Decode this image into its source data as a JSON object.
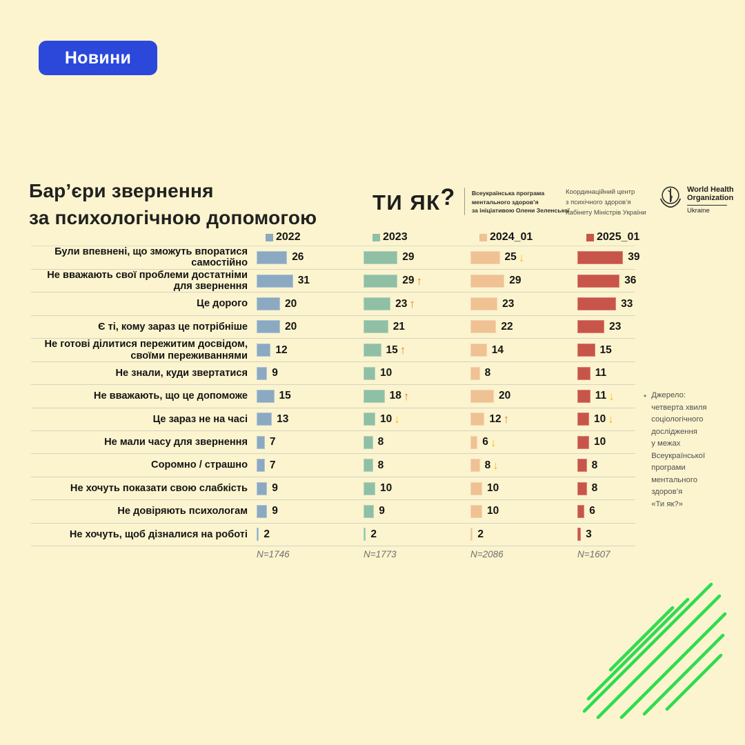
{
  "page": {
    "background": "#FBF4CE",
    "decor_line_color": "#2EDC4F"
  },
  "news_button": {
    "label": "Новини",
    "color": "#2B48DB"
  },
  "title": {
    "line1": "Бар’єри звернення",
    "line2": "за психологічною допомогою"
  },
  "logos": {
    "tyyak": {
      "wordmark": "ТИ ЯК",
      "question": "?",
      "tagline": [
        "Всеукраїнська програма",
        "ментального здоров’я",
        "за ініціативою Олени Зеленської"
      ]
    },
    "coordination": [
      "Координаційний центр",
      "з психічного здоров’я",
      "Кабінету Міністрів України"
    ],
    "who": {
      "name1": "World Health",
      "name2": "Organization",
      "country": "Ukraine"
    }
  },
  "chart_data": {
    "type": "bar",
    "orientation": "horizontal",
    "title": "Бар’єри звернення за психологічною допомогою",
    "value_axis_max": 40,
    "grid": "horizontal row separators only",
    "legend_position": "top",
    "categories": [
      "Були впевнені, що зможуть впоратися самостійно",
      "Не вважають свої проблеми достатніми для звернення",
      "Це дорого",
      "Є ті, кому зараз це потрібніше",
      "Не готові ділитися пережитим досвідом, своїми переживаннями",
      "Не знали, куди звертатися",
      "Не вважають, що це допоможе",
      "Це зараз не на часі",
      "Не мали часу для звернення",
      "Соромно / страшно",
      "Не хочуть показати свою слабкість",
      "Не довіряють психологам",
      "Не хочуть, щоб дізналися на роботі"
    ],
    "series": [
      {
        "name": "2022",
        "color": "#8CA9C2",
        "border": "#AFC6D8",
        "n": "N=1746",
        "values": [
          26,
          31,
          20,
          20,
          12,
          9,
          15,
          13,
          7,
          7,
          9,
          9,
          2
        ],
        "trends": [
          null,
          null,
          null,
          null,
          null,
          null,
          null,
          null,
          null,
          null,
          null,
          null,
          null
        ]
      },
      {
        "name": "2023",
        "color": "#8FC0A5",
        "border": "#AFD4BE",
        "n": "N=1773",
        "values": [
          29,
          29,
          23,
          21,
          15,
          10,
          18,
          10,
          8,
          8,
          10,
          9,
          2
        ],
        "trends": [
          null,
          "up",
          "up",
          null,
          "up",
          null,
          "up",
          "down",
          null,
          null,
          null,
          null,
          null
        ]
      },
      {
        "name": "2024_01",
        "color": "#EFC193",
        "border": "#F4D6B4",
        "n": "N=2086",
        "values": [
          25,
          29,
          23,
          22,
          14,
          8,
          20,
          12,
          6,
          8,
          10,
          10,
          2
        ],
        "trends": [
          "down",
          null,
          null,
          null,
          null,
          null,
          null,
          "up",
          "down",
          "down",
          null,
          null,
          null
        ]
      },
      {
        "name": "2025_01",
        "color": "#C8554A",
        "border": "#D98379",
        "n": "N=1607",
        "values": [
          39,
          36,
          33,
          23,
          15,
          11,
          11,
          10,
          10,
          8,
          8,
          6,
          3
        ],
        "trends": [
          null,
          null,
          null,
          null,
          null,
          null,
          "down",
          "down",
          null,
          null,
          null,
          null,
          null
        ]
      }
    ],
    "trend_glyphs": {
      "up": "↑",
      "down": "↓"
    },
    "trend_colors": {
      "up": "#ED7D31",
      "down": "#FFC000"
    }
  },
  "source_note": {
    "bullet": "•",
    "lines": [
      "Джерело:",
      "четверта хвиля",
      "соціологічного",
      "дослідження",
      "у межах",
      "Всеукраїнської",
      "програми",
      "ментального",
      "здоров’я",
      "«Ти як?»"
    ]
  }
}
